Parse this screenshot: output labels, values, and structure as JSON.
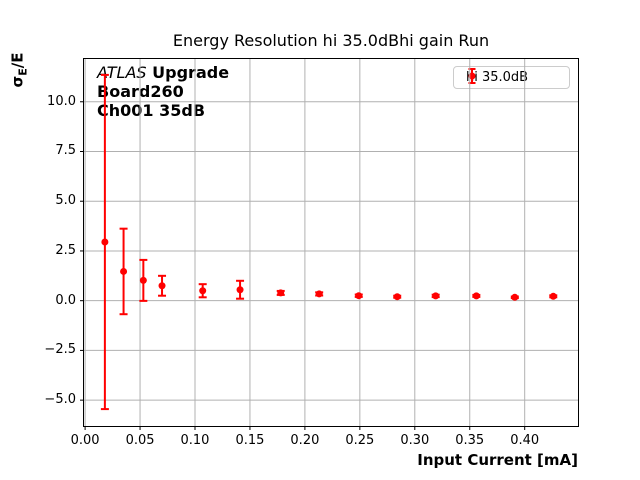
{
  "title": "Energy Resolution hi 35.0dBhi gain Run",
  "axes": {
    "xlabel": "Input Current [mA]",
    "ylabel_sigma": "σ",
    "ylabel_sub": "E",
    "ylabel_rest": "/E"
  },
  "annotation": {
    "line1_italic": "ATLAS",
    "line1_bold": " Upgrade",
    "line2": "Board260",
    "line3": "Ch001 35dB"
  },
  "legend": {
    "label": "hi 35.0dB"
  },
  "colors": {
    "series": "#ff0000",
    "grid": "#b0b0b0",
    "frame": "#000000",
    "legend_border": "#cccccc"
  },
  "chart_data": {
    "type": "scatter",
    "title": "Energy Resolution hi 35.0dBhi gain Run",
    "xlabel": "Input Current [mA]",
    "ylabel": "σE/E",
    "grid": true,
    "legend_position": "upper right",
    "xlim": [
      -0.001,
      0.4485
    ],
    "ylim": [
      -6.3,
      12.15
    ],
    "xticks": [
      0.0,
      0.05,
      0.1,
      0.15,
      0.2,
      0.25,
      0.3,
      0.35,
      0.4
    ],
    "xtick_labels": [
      "0.00",
      "0.05",
      "0.10",
      "0.15",
      "0.20",
      "0.25",
      "0.30",
      "0.35",
      "0.40"
    ],
    "yticks": [
      -5.0,
      -2.5,
      0.0,
      2.5,
      5.0,
      7.5,
      10.0
    ],
    "ytick_labels": [
      "−5.0",
      "−2.5",
      "0.0",
      "2.5",
      "5.0",
      "7.5",
      "10.0"
    ],
    "series": [
      {
        "name": "hi 35.0dB",
        "color": "#ff0000",
        "x": [
          0.018,
          0.035,
          0.053,
          0.07,
          0.107,
          0.141,
          0.178,
          0.213,
          0.249,
          0.284,
          0.319,
          0.356,
          0.391,
          0.426
        ],
        "y": [
          2.95,
          1.47,
          1.02,
          0.75,
          0.5,
          0.55,
          0.39,
          0.34,
          0.25,
          0.2,
          0.24,
          0.24,
          0.17,
          0.22
        ],
        "yerr": [
          8.4,
          2.15,
          1.03,
          0.5,
          0.33,
          0.45,
          0.1,
          0.08,
          0.06,
          0.05,
          0.06,
          0.05,
          0.04,
          0.05
        ]
      }
    ]
  }
}
